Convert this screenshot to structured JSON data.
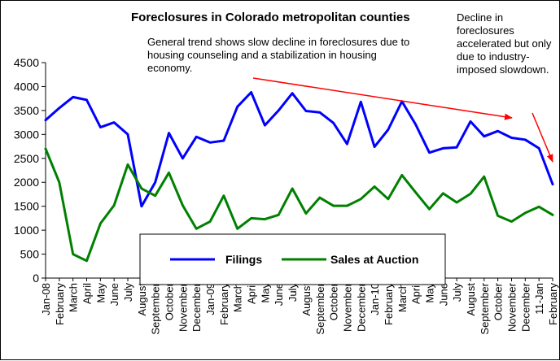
{
  "chart_data": {
    "type": "line",
    "title": "Foreclosures in Colorado metropolitan counties",
    "annotations": [
      "General trend shows slow decline in foreclosures due to housing counseling and a stabilization in housing economy.",
      "Decline in foreclosures accelerated but only due to industry-imposed slowdown."
    ],
    "categories": [
      "Jan-08",
      "February",
      "March",
      "April",
      "May",
      "June",
      "July",
      "August",
      "September",
      "October",
      "November",
      "December",
      "Jan-09",
      "February",
      "March",
      "April",
      "May",
      "June",
      "July",
      "August",
      "September",
      "October",
      "November",
      "December",
      "Jan-10",
      "February",
      "March",
      "April",
      "May",
      "June",
      "July",
      "August",
      "September",
      "October",
      "November",
      "December",
      "11-Jan",
      "February"
    ],
    "series": [
      {
        "name": "Filings",
        "color": "#0000ff",
        "values": [
          3300,
          3550,
          3780,
          3720,
          3150,
          3250,
          3000,
          1500,
          2000,
          3030,
          2500,
          2950,
          2830,
          2870,
          3580,
          3880,
          3190,
          3500,
          3860,
          3490,
          3460,
          3240,
          2800,
          3680,
          2740,
          3100,
          3690,
          3210,
          2620,
          2710,
          2730,
          3270,
          2960,
          3070,
          2930,
          2890,
          2710,
          1960
        ]
      },
      {
        "name": "Sales at Auction",
        "color": "#008000",
        "values": [
          2700,
          2000,
          500,
          360,
          1140,
          1520,
          2370,
          1870,
          1720,
          2200,
          1520,
          1030,
          1180,
          1720,
          1030,
          1250,
          1230,
          1320,
          1870,
          1350,
          1680,
          1510,
          1510,
          1650,
          1910,
          1650,
          2150,
          1790,
          1440,
          1770,
          1580,
          1760,
          2120,
          1300,
          1180,
          1360,
          1490,
          1320
        ]
      }
    ],
    "ylim": [
      0,
      4500
    ],
    "yticks": [
      0,
      500,
      1000,
      1500,
      2000,
      2500,
      3000,
      3500,
      4000,
      4500
    ],
    "xlabel": "",
    "ylabel": "",
    "grid": false,
    "legend_position": "bottom-center"
  }
}
